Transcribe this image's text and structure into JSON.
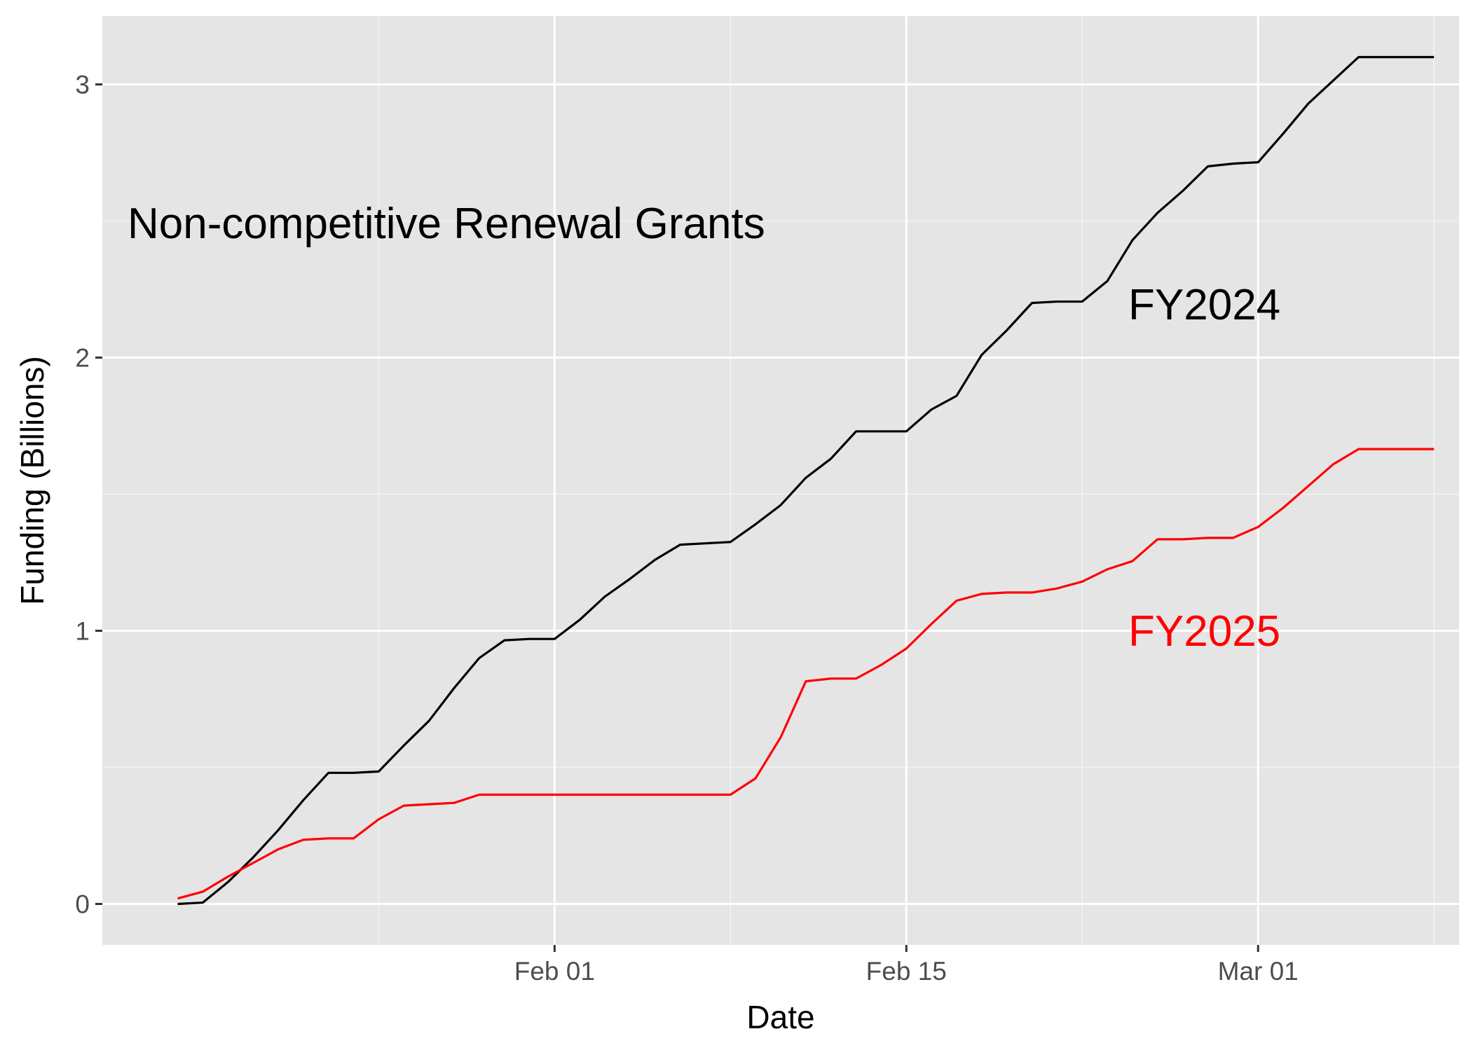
{
  "chart_data": {
    "type": "line",
    "title": "",
    "xlabel": "Date",
    "ylabel": "Funding (Billions)",
    "x_ticks": [
      "Feb 01",
      "Feb 15",
      "Mar 01"
    ],
    "y_ticks": [
      0,
      1,
      2,
      3
    ],
    "xlim": [
      "2025-01-14",
      "2025-03-09"
    ],
    "ylim": [
      -0.15,
      3.25
    ],
    "grid": true,
    "legend": "none",
    "annotations": [
      {
        "text": "Non-competitive Renewal Grants",
        "color": "#000000"
      },
      {
        "text": "FY2024",
        "color": "#000000"
      },
      {
        "text": "FY2025",
        "color": "#ff0000"
      }
    ],
    "x": [
      "2025-01-17",
      "2025-01-18",
      "2025-01-19",
      "2025-01-20",
      "2025-01-21",
      "2025-01-22",
      "2025-01-23",
      "2025-01-24",
      "2025-01-25",
      "2025-01-26",
      "2025-01-27",
      "2025-01-28",
      "2025-01-29",
      "2025-01-30",
      "2025-01-31",
      "2025-02-01",
      "2025-02-02",
      "2025-02-03",
      "2025-02-04",
      "2025-02-05",
      "2025-02-06",
      "2025-02-07",
      "2025-02-08",
      "2025-02-09",
      "2025-02-10",
      "2025-02-11",
      "2025-02-12",
      "2025-02-13",
      "2025-02-14",
      "2025-02-15",
      "2025-02-16",
      "2025-02-17",
      "2025-02-18",
      "2025-02-19",
      "2025-02-20",
      "2025-02-21",
      "2025-02-22",
      "2025-02-23",
      "2025-02-24",
      "2025-02-25",
      "2025-02-26",
      "2025-02-27",
      "2025-02-28",
      "2025-03-01",
      "2025-03-02",
      "2025-03-03",
      "2025-03-04",
      "2025-03-05",
      "2025-03-06",
      "2025-03-07",
      "2025-03-08"
    ],
    "series": [
      {
        "name": "FY2024",
        "color": "#000000",
        "values": [
          0.0,
          0.005,
          0.08,
          0.17,
          0.27,
          0.38,
          0.48,
          0.48,
          0.485,
          0.58,
          0.67,
          0.79,
          0.9,
          0.965,
          0.97,
          0.97,
          1.04,
          1.125,
          1.19,
          1.26,
          1.315,
          1.32,
          1.325,
          1.39,
          1.46,
          1.56,
          1.63,
          1.73,
          1.73,
          1.73,
          1.81,
          1.86,
          2.01,
          2.1,
          2.2,
          2.205,
          2.205,
          2.28,
          2.43,
          2.53,
          2.61,
          2.7,
          2.71,
          2.715,
          2.82,
          2.93,
          3.015,
          3.1,
          3.1,
          3.1,
          3.1
        ]
      },
      {
        "name": "FY2025",
        "color": "#ff0000",
        "values": [
          0.02,
          0.045,
          0.1,
          0.15,
          0.2,
          0.235,
          0.24,
          0.24,
          0.31,
          0.36,
          0.365,
          0.37,
          0.4,
          0.4,
          0.4,
          0.4,
          0.4,
          0.4,
          0.4,
          0.4,
          0.4,
          0.4,
          0.4,
          0.46,
          0.61,
          0.815,
          0.825,
          0.825,
          0.875,
          0.935,
          1.025,
          1.11,
          1.135,
          1.14,
          1.14,
          1.155,
          1.18,
          1.225,
          1.255,
          1.335,
          1.335,
          1.34,
          1.34,
          1.38,
          1.45,
          1.53,
          1.61,
          1.665,
          1.665,
          1.665,
          1.665
        ]
      }
    ]
  }
}
